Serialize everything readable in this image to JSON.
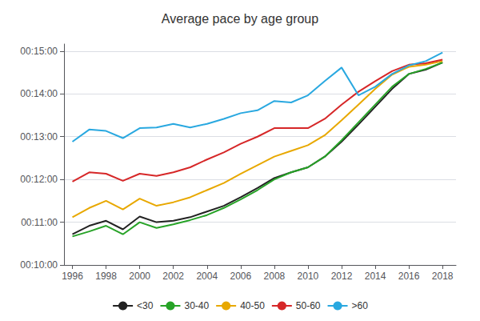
{
  "chart_data": {
    "type": "line",
    "title": "Average pace by age group",
    "x": [
      1996,
      1997,
      1998,
      1999,
      2000,
      2001,
      2002,
      2003,
      2004,
      2005,
      2006,
      2007,
      2008,
      2009,
      2010,
      2011,
      2012,
      2013,
      2014,
      2015,
      2016,
      2017,
      2018
    ],
    "series": [
      {
        "name": "<30",
        "color": "#222222",
        "values": [
          643,
          655,
          662,
          650,
          668,
          660,
          662,
          667,
          675,
          683,
          695,
          708,
          722,
          730,
          737,
          752,
          773,
          797,
          822,
          847,
          868,
          874,
          884
        ]
      },
      {
        "name": "30-40",
        "color": "#27a327",
        "values": [
          640,
          647,
          655,
          643,
          660,
          652,
          657,
          663,
          670,
          680,
          692,
          705,
          720,
          730,
          737,
          752,
          775,
          800,
          825,
          850,
          868,
          875,
          884
        ]
      },
      {
        "name": "40-50",
        "color": "#e8a800",
        "values": [
          667,
          680,
          690,
          678,
          693,
          683,
          688,
          695,
          705,
          715,
          728,
          740,
          752,
          760,
          768,
          782,
          803,
          825,
          847,
          867,
          878,
          881,
          886
        ]
      },
      {
        "name": "50-60",
        "color": "#d62728",
        "values": [
          717,
          730,
          728,
          718,
          728,
          725,
          730,
          737,
          748,
          758,
          770,
          780,
          792,
          792,
          792,
          805,
          825,
          843,
          858,
          872,
          881,
          883,
          888
        ]
      },
      {
        "name": ">60",
        "color": "#29a8e0",
        "values": [
          773,
          790,
          788,
          778,
          792,
          793,
          798,
          793,
          798,
          805,
          813,
          817,
          830,
          828,
          838,
          858,
          877,
          838,
          850,
          868,
          880,
          886,
          898
        ]
      }
    ],
    "xlim": [
      1995.5,
      2018.8
    ],
    "xticks": [
      1996,
      1998,
      2000,
      2002,
      2004,
      2006,
      2008,
      2010,
      2012,
      2014,
      2016,
      2018
    ],
    "ylim": [
      600,
      910
    ],
    "yticks": [
      {
        "value": 600,
        "label": "00:10:00"
      },
      {
        "value": 660,
        "label": "00:11:00"
      },
      {
        "value": 720,
        "label": "00:12:00"
      },
      {
        "value": 780,
        "label": "00:13:00"
      },
      {
        "value": 840,
        "label": "00:14:00"
      },
      {
        "value": 900,
        "label": "00:15:00"
      }
    ],
    "grid": true,
    "legend": "bottom"
  }
}
